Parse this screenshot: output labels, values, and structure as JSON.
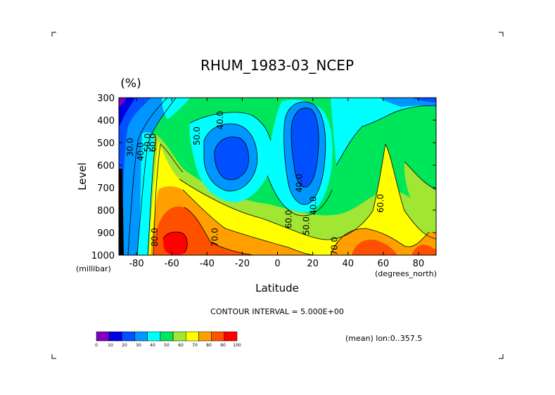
{
  "chart_data": {
    "type": "heatmap",
    "title": "RHUM_1983-03_NCEP",
    "units": "(%)",
    "xlabel": "Latitude",
    "ylabel": "Level",
    "x_unit": "(degrees_north)",
    "y_unit": "(millibar)",
    "x_ticks": [
      "-80",
      "-60",
      "-40",
      "-20",
      "0",
      "20",
      "40",
      "60",
      "80"
    ],
    "y_ticks": [
      "300",
      "400",
      "500",
      "600",
      "700",
      "800",
      "900",
      "1000"
    ],
    "xlim": [
      -90,
      90
    ],
    "ylim": [
      1000,
      300
    ],
    "contour_interval_text": "CONTOUR INTERVAL = 5.000E+00",
    "mean_text": "(mean) lon:0..357.5",
    "colorbar": {
      "levels": [
        "0",
        "10",
        "20",
        "30",
        "40",
        "50",
        "60",
        "70",
        "80",
        "90",
        "100"
      ],
      "colors": [
        "#7f00bf",
        "#0000e6",
        "#0050ff",
        "#0096ff",
        "#00ffff",
        "#00e65a",
        "#a0e632",
        "#ffff00",
        "#ffa000",
        "#ff5000",
        "#ff0000"
      ]
    },
    "contour_labels": [
      {
        "text": "30.0",
        "lat": -82,
        "level": 520
      },
      {
        "text": "40.0",
        "lat": -76,
        "level": 540
      },
      {
        "text": "50.0",
        "lat": -72,
        "level": 500
      },
      {
        "text": "60.0",
        "lat": -69,
        "level": 500
      },
      {
        "text": "50.0",
        "lat": -44,
        "level": 470
      },
      {
        "text": "40.0",
        "lat": -31,
        "level": 400
      },
      {
        "text": "40.0",
        "lat": 14,
        "level": 680
      },
      {
        "text": "40.0",
        "lat": 22,
        "level": 780
      },
      {
        "text": "60.0",
        "lat": 8,
        "level": 840
      },
      {
        "text": "50.0",
        "lat": 18,
        "level": 870
      },
      {
        "text": "70.0",
        "lat": -34,
        "level": 920
      },
      {
        "text": "80.0",
        "lat": -68,
        "level": 920
      },
      {
        "text": "70.0",
        "lat": 34,
        "level": 960
      },
      {
        "text": "60.0",
        "lat": 60,
        "level": 770
      }
    ],
    "grid": false
  }
}
